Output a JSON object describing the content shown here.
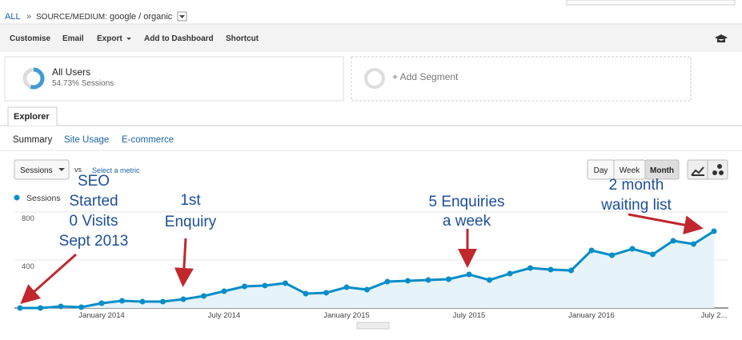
{
  "breadcrumb": {
    "root": "ALL",
    "separator": "»",
    "label": "SOURCE/MEDIUM:",
    "value": "google / organic"
  },
  "toolbar": [
    "Customise",
    "Email",
    "Export",
    "Add to Dashboard",
    "Shortcut"
  ],
  "segment": {
    "name": "All Users",
    "detail": "54.73% Sessions"
  },
  "add_segment": "+ Add Segment",
  "tab": "Explorer",
  "subtabs": [
    "Summary",
    "Site Usage",
    "E-commerce"
  ],
  "metric": {
    "selected": "Sessions",
    "vs": "vs",
    "select": "Select a metric"
  },
  "periods": [
    "Day",
    "Week",
    "Month"
  ],
  "chart_data": {
    "type": "line",
    "categories": [
      null,
      null,
      null,
      null,
      "January 2014",
      null,
      null,
      null,
      null,
      null,
      "July 2014",
      null,
      null,
      null,
      null,
      null,
      "January 2015",
      null,
      null,
      null,
      null,
      null,
      "July 2015",
      null,
      null,
      null,
      null,
      null,
      "January 2016",
      null,
      null,
      null,
      null,
      null,
      "July 2..."
    ],
    "series": [
      {
        "name": "Sessions",
        "color": "#058dc7",
        "values": [
          0,
          0,
          13,
          7,
          40,
          60,
          53,
          53,
          73,
          100,
          140,
          180,
          187,
          207,
          120,
          127,
          173,
          153,
          220,
          227,
          233,
          240,
          280,
          233,
          287,
          333,
          320,
          313,
          480,
          440,
          493,
          447,
          560,
          533,
          640
        ]
      }
    ],
    "ylim": [
      0,
      800
    ],
    "yticks": [
      400,
      800
    ],
    "grid": true,
    "annotations": [
      {
        "lines": [
          "SEO",
          "Started",
          "0 Visits",
          "Sept 2013"
        ]
      },
      {
        "lines": [
          "1st",
          "Enquiry"
        ]
      },
      {
        "lines": [
          "5 Enquiries",
          "a week"
        ]
      },
      {
        "lines": [
          "2 month",
          "waiting list"
        ]
      }
    ]
  }
}
